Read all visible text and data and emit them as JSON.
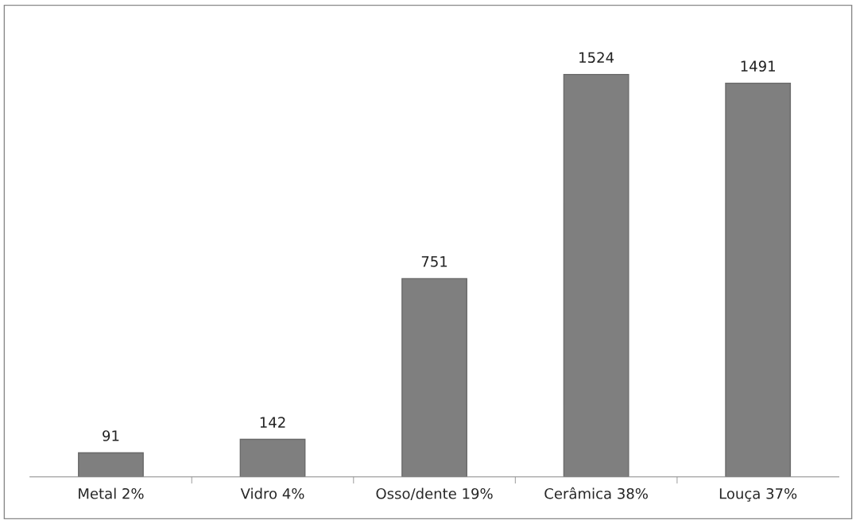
{
  "chart_data": {
    "type": "bar",
    "categories": [
      "Metal 2%",
      "Vidro 4%",
      "Osso/dente 19%",
      "Cerâmica 38%",
      "Louça 37%"
    ],
    "values": [
      91,
      142,
      751,
      1524,
      1491
    ],
    "color": "#7f7f7f",
    "data_labels": true,
    "grid": false,
    "legend": false
  }
}
